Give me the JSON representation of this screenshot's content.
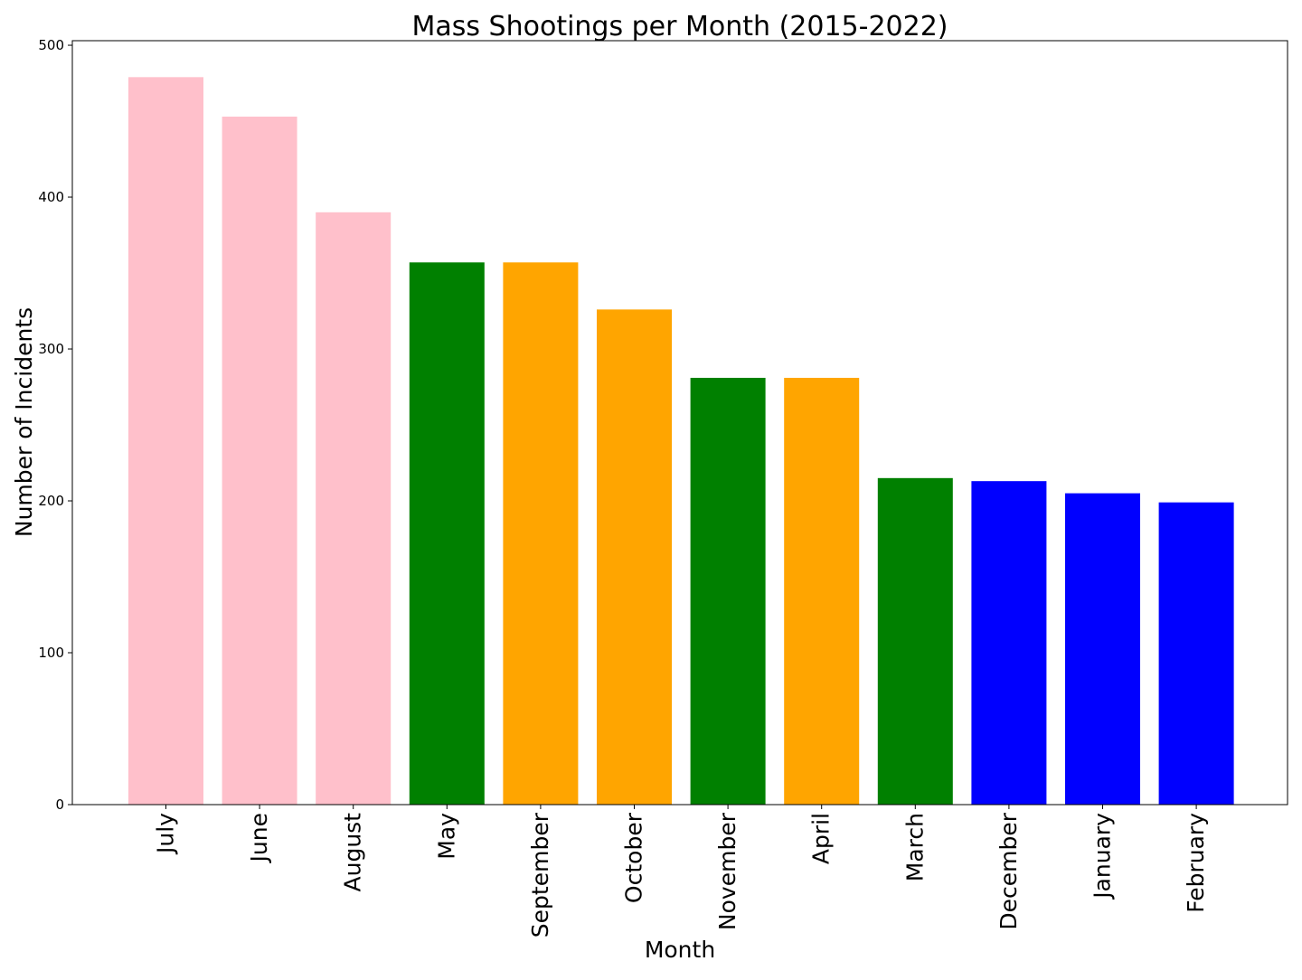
{
  "chart_data": {
    "type": "bar",
    "title": "Mass Shootings per Month (2015-2022)",
    "xlabel": "Month",
    "ylabel": "Number of Incidents",
    "categories": [
      "July",
      "June",
      "August",
      "May",
      "September",
      "October",
      "November",
      "April",
      "March",
      "December",
      "January",
      "February"
    ],
    "values": [
      479,
      453,
      390,
      357,
      357,
      326,
      281,
      281,
      215,
      213,
      205,
      199
    ],
    "bar_colors": [
      "#FFC0CB",
      "#FFC0CB",
      "#FFC0CB",
      "#008000",
      "#FFA500",
      "#FFA500",
      "#008000",
      "#FFA500",
      "#008000",
      "#0000FF",
      "#0000FF",
      "#0000FF"
    ],
    "yticks": [
      0,
      100,
      200,
      300,
      400,
      500
    ],
    "ylim": [
      0,
      503
    ],
    "grid": false,
    "legend": "none"
  }
}
